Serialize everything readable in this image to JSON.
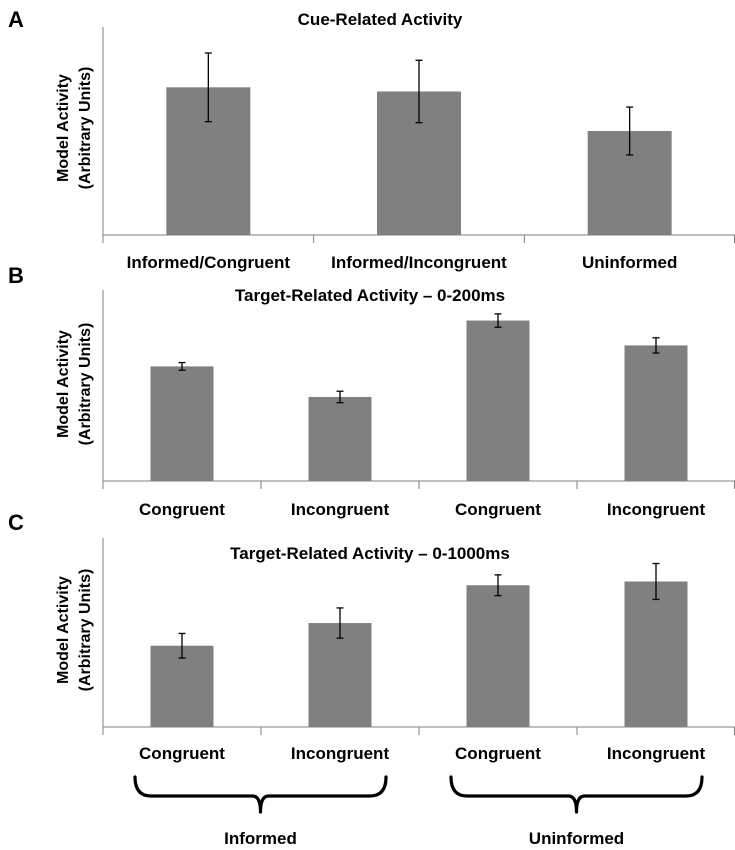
{
  "chart_data": [
    {
      "panel": "A",
      "type": "bar",
      "title": "Cue-Related Activity",
      "ylabel_line1": "Model Activity",
      "ylabel_line2": "(Arbitrary Units)",
      "categories": [
        "Informed/Congruent",
        "Informed/Incongruent",
        "Uninformed"
      ],
      "values": [
        0.71,
        0.69,
        0.5
      ],
      "errors": [
        0.165,
        0.15,
        0.115
      ],
      "ylim": [
        0,
        1
      ]
    },
    {
      "panel": "B",
      "type": "bar",
      "title": "Target-Related Activity – 0-200ms",
      "ylabel_line1": "Model Activity",
      "ylabel_line2": "(Arbitrary Units)",
      "categories": [
        "Congruent",
        "Incongruent",
        "Congruent",
        "Incongruent"
      ],
      "values": [
        0.6,
        0.44,
        0.84,
        0.71
      ],
      "errors": [
        0.02,
        0.03,
        0.035,
        0.04
      ],
      "ylim": [
        0,
        1
      ]
    },
    {
      "panel": "C",
      "type": "bar",
      "title": "Target-Related Activity – 0-1000ms",
      "ylabel_line1": "Model Activity",
      "ylabel_line2": "(Arbitrary Units)",
      "categories": [
        "Congruent",
        "Incongruent",
        "Congruent",
        "Incongruent"
      ],
      "values": [
        0.43,
        0.55,
        0.75,
        0.77
      ],
      "errors": [
        0.065,
        0.08,
        0.055,
        0.095
      ],
      "ylim": [
        0,
        1
      ],
      "groups": [
        {
          "label": "Informed",
          "category_indices": [
            0,
            1
          ]
        },
        {
          "label": "Uninformed",
          "category_indices": [
            2,
            3
          ]
        }
      ]
    }
  ]
}
